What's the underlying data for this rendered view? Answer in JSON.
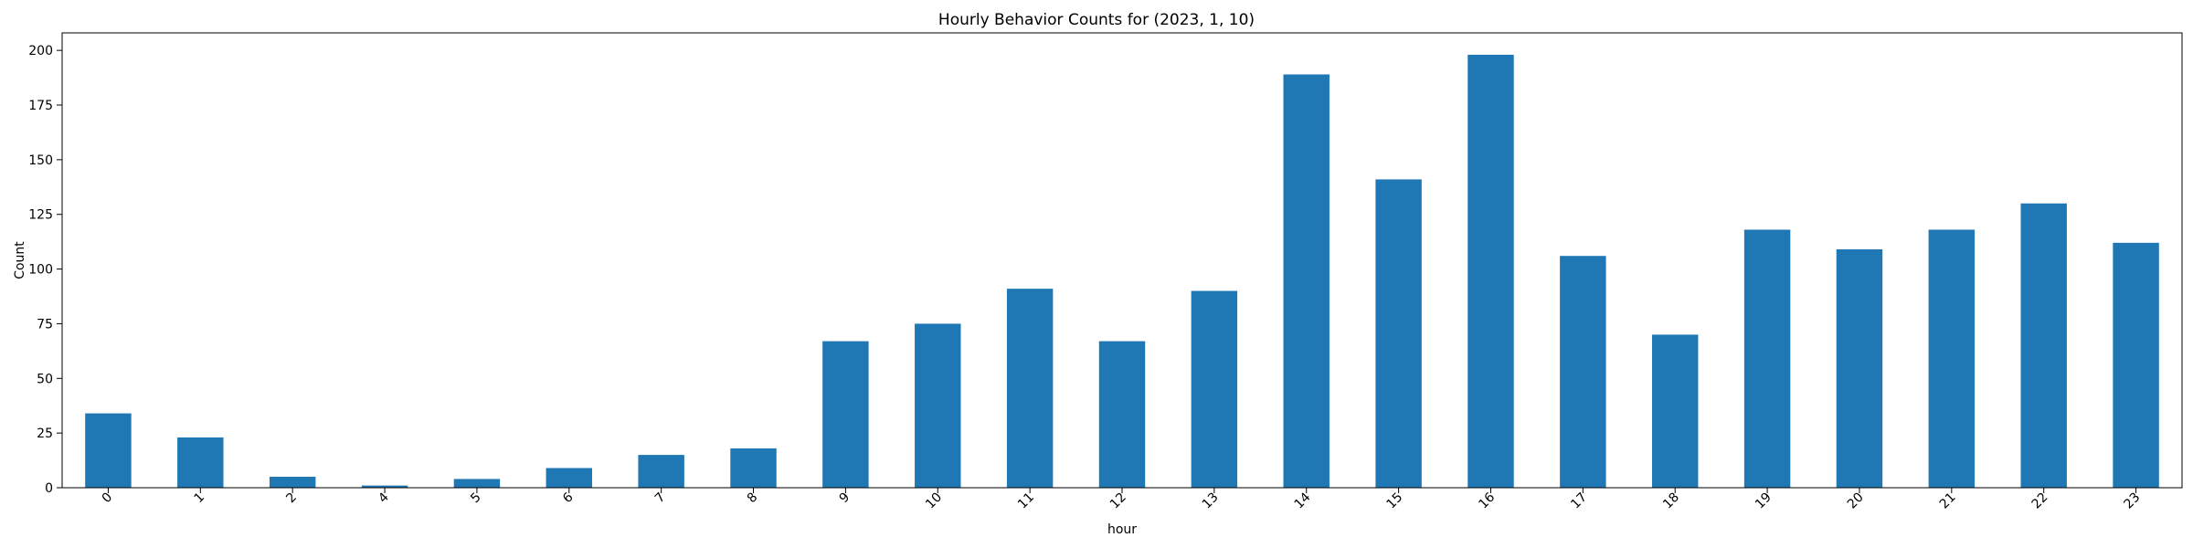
{
  "chart_data": {
    "type": "bar",
    "title": "Hourly Behavior Counts for (2023, 1, 10)",
    "xlabel": "hour",
    "ylabel": "Count",
    "categories": [
      "0",
      "1",
      "2",
      "4",
      "5",
      "6",
      "7",
      "8",
      "9",
      "10",
      "11",
      "12",
      "13",
      "14",
      "15",
      "16",
      "17",
      "18",
      "19",
      "20",
      "21",
      "22",
      "23"
    ],
    "values": [
      34,
      23,
      5,
      1,
      4,
      9,
      15,
      18,
      67,
      75,
      91,
      67,
      90,
      189,
      141,
      198,
      106,
      70,
      118,
      109,
      118,
      130,
      112
    ],
    "ylim": [
      0,
      208
    ],
    "yticks": [
      0,
      25,
      50,
      75,
      100,
      125,
      150,
      175,
      200
    ],
    "ytick_labels": [
      "0",
      "25",
      "50",
      "75",
      "100",
      "125",
      "150",
      "175",
      "200"
    ],
    "bar_color": "#1f77b4",
    "grid": false,
    "legend": "none"
  }
}
